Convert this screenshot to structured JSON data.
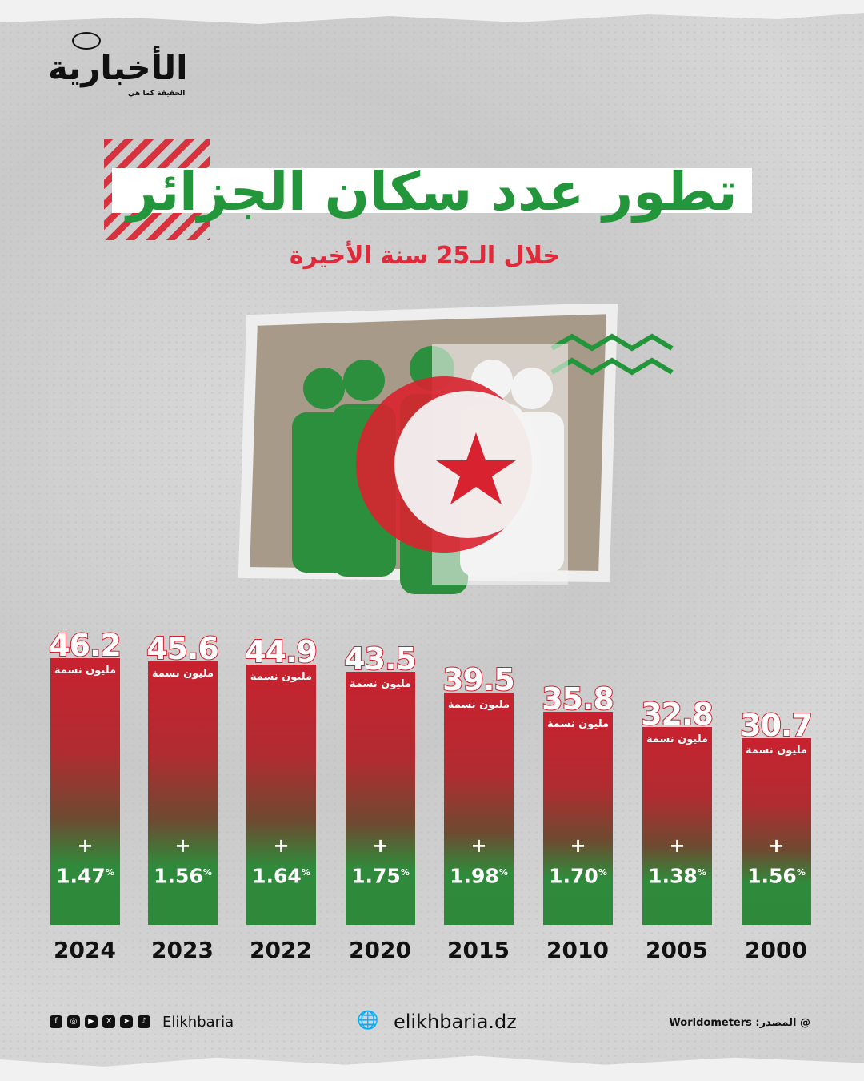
{
  "brand": {
    "logo_text": "الأخبارية",
    "tagline": "الحقيقة كما هي"
  },
  "title": "تطور عدد سكان الجزائر",
  "subtitle": "خلال الـ25 سنة الأخيرة",
  "colors": {
    "red": "#c8222f",
    "green": "#2e8a3a",
    "title_green": "#23963b"
  },
  "chart_data": {
    "type": "bar",
    "categories": [
      "2024",
      "2023",
      "2022",
      "2020",
      "2015",
      "2010",
      "2005",
      "2000"
    ],
    "values": [
      46.2,
      45.6,
      44.9,
      43.5,
      39.5,
      35.8,
      32.8,
      30.7
    ],
    "unit_label": "مليون نسمة",
    "growth_rates": [
      "1.47",
      "1.56",
      "1.64",
      "1.75",
      "1.98",
      "1.70",
      "1.38",
      "1.56"
    ],
    "growth_prefix": "+",
    "growth_suffix": "%"
  },
  "footer": {
    "social_icons": [
      "facebook-icon",
      "instagram-icon",
      "youtube-icon",
      "x-icon",
      "telegram-icon",
      "tiktok-icon"
    ],
    "handle": "Elikhbaria",
    "website": "elikhbaria.dz",
    "source": "@ المصدر: Worldometers"
  }
}
